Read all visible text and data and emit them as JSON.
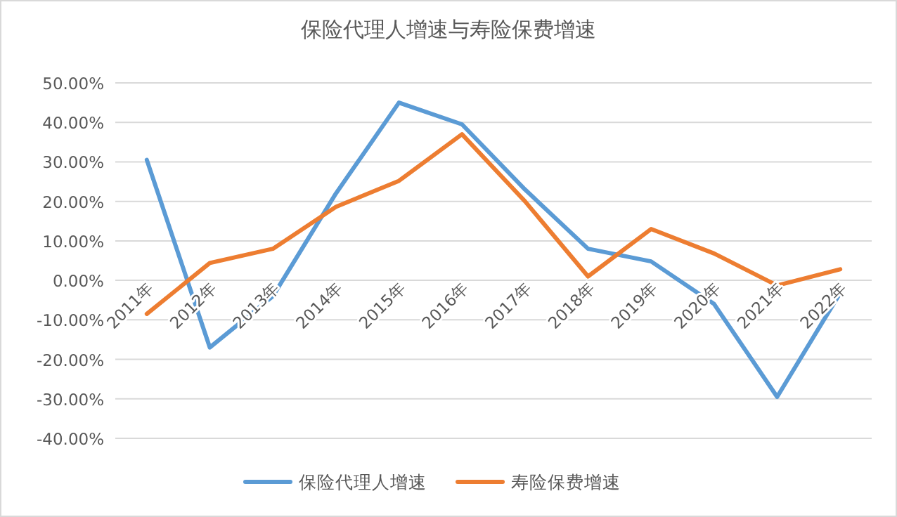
{
  "chart_data": {
    "type": "line",
    "title": "保险代理人增速与寿险保费增速",
    "categories": [
      "2011年",
      "2012年",
      "2013年",
      "2014年",
      "2015年",
      "2016年",
      "2017年",
      "2018年",
      "2019年",
      "2020年",
      "2021年",
      "2022年"
    ],
    "series": [
      {
        "name": "保险代理人增速",
        "color": "#5b9bd5",
        "values": [
          30.5,
          -17,
          -4,
          22,
          45,
          39.5,
          23,
          8,
          4.8,
          -6,
          -29.5,
          -3.2
        ]
      },
      {
        "name": "寿险保费增速",
        "color": "#ed7d31",
        "values": [
          -8.5,
          4.4,
          8,
          18.6,
          25.2,
          37,
          20,
          1,
          13,
          6.8,
          -1.3,
          2.8
        ]
      }
    ],
    "ylim": [
      -40,
      50
    ],
    "yticks": [
      {
        "value": -40,
        "label": "-40.00%"
      },
      {
        "value": -30,
        "label": "-30.00%"
      },
      {
        "value": -20,
        "label": "-20.00%"
      },
      {
        "value": -10,
        "label": "-10.00%"
      },
      {
        "value": 0,
        "label": "0.00%"
      },
      {
        "value": 10,
        "label": "10.00%"
      },
      {
        "value": 20,
        "label": "20.00%"
      },
      {
        "value": 30,
        "label": "30.00%"
      },
      {
        "value": 40,
        "label": "40.00%"
      },
      {
        "value": 50,
        "label": "50.00%"
      }
    ],
    "grid": "y",
    "legend": "bottom",
    "marker": "none",
    "line_style": "solid"
  }
}
